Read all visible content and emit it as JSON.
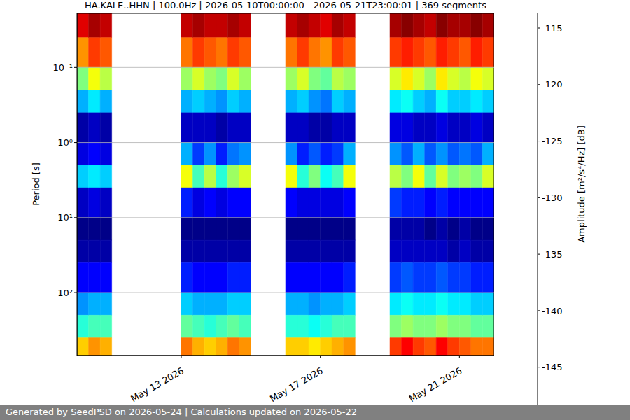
{
  "chart_data": {
    "type": "heatmap",
    "title": "HA.KALE..HHN | 100.0Hz | 2026-05-10T00:00:00 - 2026-05-21T23:00:01 | 369 segments",
    "footer": "Generated by SeedPSD on 2026-05-24 | Calculations updated on 2026-05-22",
    "y_label": "Period [s]",
    "colorbar_label": "Amplitude [m²/s⁴/Hz] [dB]",
    "log": "y",
    "grid": true,
    "xlim": [
      "2026-05-10T00:00",
      "2026-05-22T00:00"
    ],
    "xticks": [
      {
        "value": "2026-05-13T00:00",
        "label": "May 13 2026"
      },
      {
        "value": "2026-05-17T00:00",
        "label": "May 17 2026"
      },
      {
        "value": "2026-05-21T00:00",
        "label": "May 21 2026"
      }
    ],
    "ylim": [
      0.019,
      690
    ],
    "yticks": [
      {
        "value": 0.1,
        "label": "10⁻¹"
      },
      {
        "value": 1,
        "label": "10⁰"
      },
      {
        "value": 10,
        "label": "10¹"
      },
      {
        "value": 100,
        "label": "10²"
      }
    ],
    "x_edges": [
      "2026-05-10T00:00",
      "2026-05-10T08:00",
      "2026-05-10T16:00",
      "2026-05-11T00:00",
      "2026-05-11T08:00",
      "2026-05-11T16:00",
      "2026-05-12T00:00",
      "2026-05-12T08:00",
      "2026-05-12T16:00",
      "2026-05-13T00:00",
      "2026-05-13T08:00",
      "2026-05-13T16:00",
      "2026-05-14T00:00",
      "2026-05-14T08:00",
      "2026-05-14T16:00",
      "2026-05-15T00:00",
      "2026-05-15T08:00",
      "2026-05-15T16:00",
      "2026-05-16T00:00",
      "2026-05-16T08:00",
      "2026-05-16T16:00",
      "2026-05-17T00:00",
      "2026-05-17T08:00",
      "2026-05-17T16:00",
      "2026-05-18T00:00",
      "2026-05-18T08:00",
      "2026-05-18T16:00",
      "2026-05-19T00:00",
      "2026-05-19T08:00",
      "2026-05-19T16:00",
      "2026-05-20T00:00",
      "2026-05-20T08:00",
      "2026-05-20T16:00",
      "2026-05-21T00:00",
      "2026-05-21T08:00",
      "2026-05-21T16:00",
      "2026-05-22T00:00"
    ],
    "period_edges": [
      0.019,
      0.04,
      0.1,
      0.2,
      0.4,
      1,
      2,
      4,
      10,
      20,
      40,
      100,
      200,
      400,
      690
    ],
    "cells": [
      [
        -117,
        -123,
        -131,
        -138,
        -147,
        -145,
        -137,
        -146,
        -148,
        -147,
        -144,
        -139,
        -134,
        -125
      ],
      [
        -115,
        -120,
        -127,
        -136,
        -146,
        -144,
        -136,
        -145,
        -148,
        -147,
        -144,
        -138,
        -133,
        -123
      ],
      [
        -116,
        -121,
        -129,
        -138,
        -147,
        -145,
        -137,
        -146,
        -148,
        -147,
        -144,
        -138,
        -133,
        -124
      ],
      null,
      null,
      null,
      null,
      null,
      null,
      [
        -116,
        -122,
        -130,
        -138,
        -146,
        -138,
        -127,
        -143,
        -148,
        -147,
        -143,
        -137,
        -132,
        -122
      ],
      [
        -115,
        -120,
        -128,
        -137,
        -146,
        -142,
        -133,
        -145,
        -148,
        -147,
        -144,
        -138,
        -133,
        -124
      ],
      [
        -116,
        -121,
        -130,
        -138,
        -146,
        -139,
        -129,
        -144,
        -148,
        -147,
        -144,
        -138,
        -134,
        -125
      ],
      [
        -116,
        -122,
        -131,
        -139,
        -147,
        -143,
        -134,
        -145,
        -148,
        -147,
        -144,
        -138,
        -133,
        -124
      ],
      [
        -115,
        -120,
        -128,
        -137,
        -146,
        -140,
        -130,
        -144,
        -148,
        -147,
        -143,
        -137,
        -132,
        -122
      ],
      [
        -116,
        -121,
        -130,
        -138,
        -146,
        -139,
        -128,
        -144,
        -148,
        -147,
        -143,
        -137,
        -133,
        -123
      ],
      null,
      null,
      null,
      [
        -116,
        -122,
        -130,
        -138,
        -146,
        -139,
        -127,
        -144,
        -148,
        -147,
        -144,
        -138,
        -134,
        -125
      ],
      [
        -115,
        -120,
        -128,
        -137,
        -146,
        -143,
        -134,
        -145,
        -148,
        -147,
        -144,
        -138,
        -134,
        -125
      ],
      [
        -116,
        -122,
        -131,
        -139,
        -147,
        -141,
        -131,
        -145,
        -148,
        -147,
        -144,
        -139,
        -135,
        -126
      ],
      [
        -117,
        -123,
        -132,
        -140,
        -147,
        -143,
        -135,
        -145,
        -148,
        -147,
        -144,
        -138,
        -134,
        -125
      ],
      [
        -115,
        -120,
        -129,
        -137,
        -146,
        -142,
        -133,
        -145,
        -148,
        -147,
        -144,
        -138,
        -133,
        -124
      ],
      [
        -116,
        -121,
        -130,
        -138,
        -146,
        -138,
        -127,
        -144,
        -148,
        -147,
        -143,
        -137,
        -133,
        -123
      ],
      null,
      null,
      null,
      [
        -115,
        -120,
        -128,
        -136,
        -145,
        -139,
        -129,
        -142,
        -147,
        -146,
        -142,
        -136,
        -131,
        -120
      ],
      [
        -114,
        -119,
        -126,
        -135,
        -145,
        -141,
        -131,
        -143,
        -147,
        -146,
        -141,
        -135,
        -130,
        -118
      ],
      [
        -115,
        -120,
        -128,
        -137,
        -146,
        -138,
        -127,
        -143,
        -147,
        -146,
        -142,
        -136,
        -131,
        -120
      ],
      [
        -116,
        -121,
        -130,
        -138,
        -146,
        -141,
        -132,
        -144,
        -148,
        -146,
        -142,
        -136,
        -131,
        -121
      ],
      [
        -114,
        -119,
        -126,
        -135,
        -145,
        -139,
        -128,
        -143,
        -147,
        -146,
        -141,
        -135,
        -130,
        -118
      ],
      [
        -115,
        -120,
        -128,
        -137,
        -146,
        -141,
        -131,
        -144,
        -148,
        -147,
        -142,
        -136,
        -131,
        -120
      ],
      [
        -115,
        -121,
        -129,
        -137,
        -146,
        -140,
        -130,
        -144,
        -147,
        -146,
        -142,
        -136,
        -131,
        -121
      ],
      [
        -114,
        -119,
        -127,
        -136,
        -145,
        -141,
        -131,
        -144,
        -148,
        -147,
        -143,
        -137,
        -132,
        -122
      ],
      [
        -115,
        -120,
        -128,
        -137,
        -146,
        -138,
        -128,
        -144,
        -148,
        -147,
        -143,
        -137,
        -132,
        -122
      ]
    ],
    "colorbar_lim": [
      -148.3,
      -113.7
    ],
    "colorbar_ticks": [
      -145,
      -140,
      -135,
      -130,
      -125,
      -120,
      -115
    ]
  }
}
